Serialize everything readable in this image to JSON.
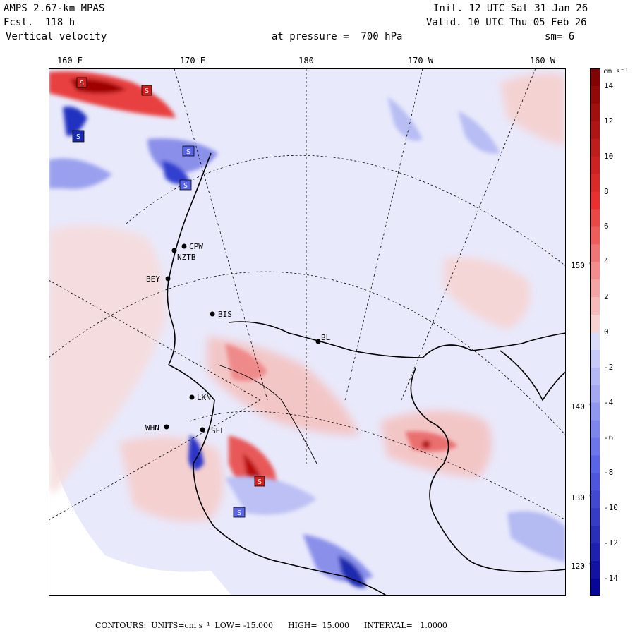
{
  "header": {
    "model": "AMPS 2.67-km MPAS",
    "forecast": "Fcst.  118 h",
    "field": "Vertical velocity",
    "level": "at pressure =  700 hPa",
    "init": "Init. 12 UTC Sat 31 Jan 26",
    "valid": "Valid. 10 UTC Thu 05 Feb 26",
    "smoothing": "sm= 6"
  },
  "longitude_labels": [
    "160 E",
    "170 E",
    "180",
    "170 W",
    "160 W"
  ],
  "latitude_labels": [
    "150 W",
    "140 W",
    "130 W",
    "120 W"
  ],
  "stations": [
    "CPW",
    "NZTB",
    "BEY",
    "BIS",
    "SEL",
    "WHN",
    "LKN",
    "BL"
  ],
  "extrema_labels": [
    "S",
    "S",
    "S",
    "S",
    "S",
    "S",
    "S"
  ],
  "colorbar": {
    "unit": "cm s⁻¹",
    "tick_labels": [
      "14",
      "12",
      "10",
      "8",
      "6",
      "4",
      "2",
      "0",
      "-2",
      "-4",
      "-6",
      "-8",
      "-10",
      "-12",
      "-14"
    ],
    "levels": [
      -15,
      15
    ],
    "colors": {
      "red_darkest": "#7a0000",
      "red_mid": "#e83030",
      "pink_light": "#f8dede",
      "neutral": "#ffffff",
      "blue_light": "#e2e4fa",
      "blue_mid": "#5a64e6",
      "blue_darkest": "#000090"
    }
  },
  "footer": "CONTOURS:  UNITS=cm s⁻¹  LOW= -15.000      HIGH=  15.000      INTERVAL=   1.0000"
}
